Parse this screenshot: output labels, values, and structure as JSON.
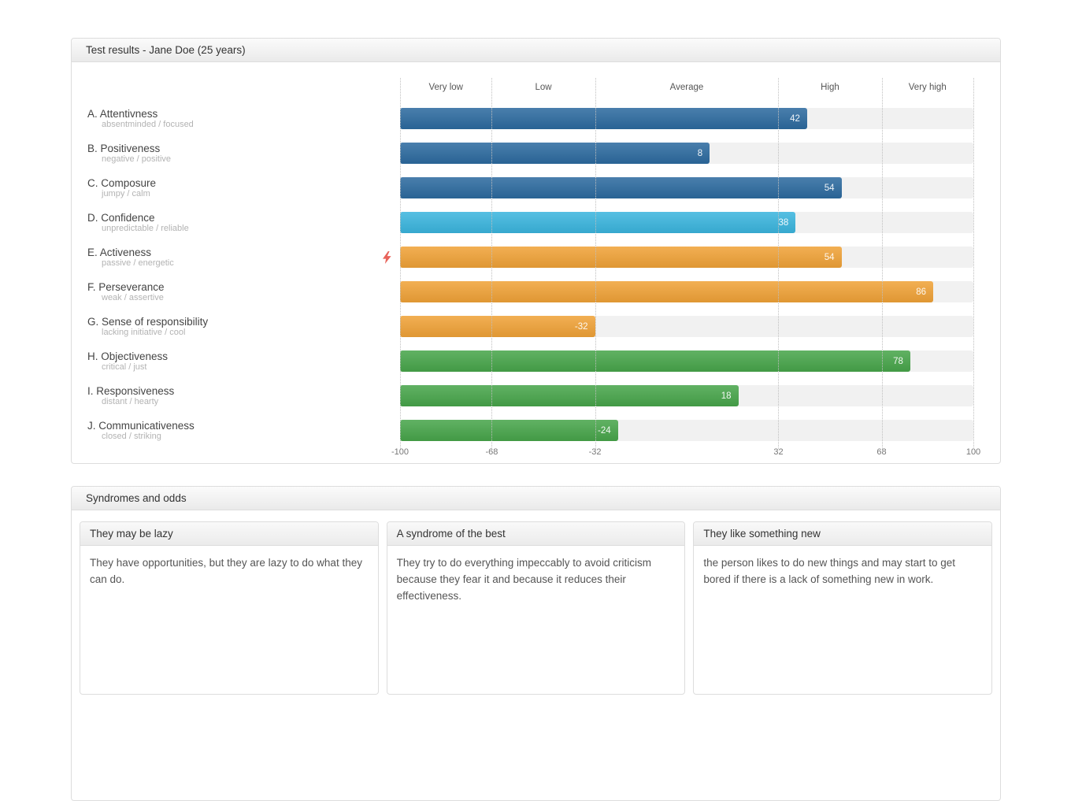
{
  "panel_results": {
    "title": "Test results - Jane Doe (25 years)"
  },
  "panel_syndromes": {
    "title": "Syndromes and odds",
    "cards": [
      {
        "title": "They may be lazy",
        "body": "They have opportunities, but they are lazy to do what they can do."
      },
      {
        "title": "A syndrome of the best",
        "body": "They try to do everything impeccably to avoid criticism because they fear it and because it reduces their effectiveness."
      },
      {
        "title": "They like something new",
        "body": "the person likes to do new things and may start to get bored if there is a lack of something new in work."
      }
    ]
  },
  "chart_data": {
    "type": "bar",
    "orientation": "horizontal",
    "xlim": [
      -100,
      100
    ],
    "grid": true,
    "zones": [
      {
        "label": "Very low",
        "from": -100,
        "to": -68
      },
      {
        "label": "Low",
        "from": -68,
        "to": -32
      },
      {
        "label": "Average",
        "from": -32,
        "to": 32
      },
      {
        "label": "High",
        "from": 32,
        "to": 68
      },
      {
        "label": "Very high",
        "from": 68,
        "to": 100
      }
    ],
    "ticks": [
      {
        "label": "-100",
        "value": -100
      },
      {
        "label": "-68",
        "value": -68
      },
      {
        "label": "-32",
        "value": -32
      },
      {
        "label": "32",
        "value": 32
      },
      {
        "label": "68",
        "value": 68
      },
      {
        "label": "100",
        "value": 100
      }
    ],
    "rows": [
      {
        "letter": "A.",
        "name": "Attentivness",
        "subtitle": "absentminded / focused",
        "value": 42,
        "color": "#2c6a9f",
        "flag": false
      },
      {
        "letter": "B.",
        "name": "Positiveness",
        "subtitle": "negative / positive",
        "value": 8,
        "color": "#2c6a9f",
        "flag": false
      },
      {
        "letter": "C.",
        "name": "Composure",
        "subtitle": "jumpy / calm",
        "value": 54,
        "color": "#2c6a9f",
        "flag": false
      },
      {
        "letter": "D.",
        "name": "Confidence",
        "subtitle": "unpredictable / reliable",
        "value": 38,
        "color": "#3ab5de",
        "flag": false
      },
      {
        "letter": "E.",
        "name": "Activeness",
        "subtitle": "passive / energetic",
        "value": 54,
        "color": "#f0a237",
        "flag": true
      },
      {
        "letter": "F.",
        "name": "Perseverance",
        "subtitle": "weak / assertive",
        "value": 86,
        "color": "#f0a237",
        "flag": false
      },
      {
        "letter": "G.",
        "name": "Sense of responsibility",
        "subtitle": "lacking initiative / cool",
        "value": -32,
        "color": "#f0a237",
        "flag": false
      },
      {
        "letter": "H.",
        "name": "Objectiveness",
        "subtitle": "critical / just",
        "value": 78,
        "color": "#47a54a",
        "flag": false
      },
      {
        "letter": "I.",
        "name": "Responsiveness",
        "subtitle": "distant / hearty",
        "value": 18,
        "color": "#47a54a",
        "flag": false
      },
      {
        "letter": "J.",
        "name": "Communicativeness",
        "subtitle": "closed / striking",
        "value": -24,
        "color": "#47a54a",
        "flag": false
      }
    ],
    "colors": {
      "track": "#f1f1f1",
      "value_label": "#ffffff",
      "flag": "#e8635b",
      "grid": "#bfbfbf"
    },
    "flag_icon": "lightning-bolt"
  }
}
